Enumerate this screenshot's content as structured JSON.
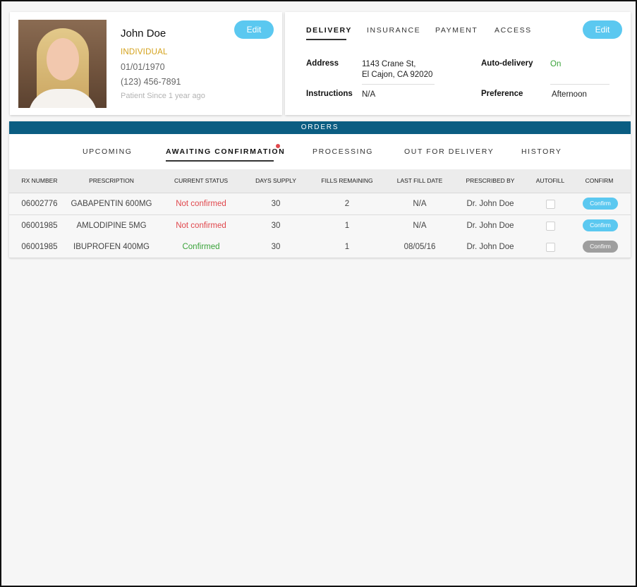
{
  "patient": {
    "name": "John Doe",
    "type": "INDIVIDUAL",
    "dob": "01/01/1970",
    "phone": "(123) 456-7891",
    "since": "Patient Since 1 year ago",
    "edit_label": "Edit",
    "photo_icon": "patient-photo"
  },
  "delivery": {
    "tabs": [
      {
        "label": "DELIVERY",
        "active": true
      },
      {
        "label": "INSURANCE",
        "active": false
      },
      {
        "label": "PAYMENT",
        "active": false
      },
      {
        "label": "ACCESS",
        "active": false
      }
    ],
    "edit_label": "Edit",
    "address_label": "Address",
    "address_line1": "1143 Crane St,",
    "address_line2": "El Cajon, CA 92020",
    "instructions_label": "Instructions",
    "instructions_value": "N/A",
    "auto_delivery_label": "Auto-delivery",
    "auto_delivery_value": "On",
    "preference_label": "Preference",
    "preference_value": "Afternoon"
  },
  "orders": {
    "title": "ORDERS",
    "tabs": [
      {
        "label": "UPCOMING",
        "active": false
      },
      {
        "label": "AWAITING CONFIRMATION",
        "active": true,
        "has_notification": true
      },
      {
        "label": "PROCESSING",
        "active": false
      },
      {
        "label": "OUT FOR DELIVERY",
        "active": false
      },
      {
        "label": "HISTORY",
        "active": false
      }
    ],
    "columns": [
      "RX NUMBER",
      "PRESCRIPTION",
      "CURRENT STATUS",
      "DAYS SUPPLY",
      "FILLS REMAINING",
      "LAST FILL DATE",
      "PRESCRIBED BY",
      "AUTOFILL",
      "CONFIRM"
    ],
    "rows": [
      {
        "rx": "06002776",
        "prescription": "GABAPENTIN 600MG",
        "status": "Not confirmed",
        "status_type": "red",
        "days": "30",
        "fills": "2",
        "last_fill": "N/A",
        "prescriber": "Dr. John Doe",
        "autofill": false,
        "confirm_label": "Confirm",
        "confirm_enabled": true
      },
      {
        "rx": "06001985",
        "prescription": "AMLODIPINE 5MG",
        "status": "Not confirmed",
        "status_type": "red",
        "days": "30",
        "fills": "1",
        "last_fill": "N/A",
        "prescriber": "Dr. John Doe",
        "autofill": false,
        "confirm_label": "Confirm",
        "confirm_enabled": true
      },
      {
        "rx": "06001985",
        "prescription": "IBUPROFEN  400MG",
        "status": "Confirmed",
        "status_type": "green",
        "days": "30",
        "fills": "1",
        "last_fill": "08/05/16",
        "prescriber": "Dr. John Doe",
        "autofill": false,
        "confirm_label": "Confirm",
        "confirm_enabled": false
      }
    ]
  },
  "colors": {
    "accent": "#5bc8f0",
    "orders_bar": "#0b5d82",
    "warning": "#e0474c",
    "success": "#3aa33a",
    "individual": "#d4a21c",
    "disabled": "#9e9e9e"
  }
}
